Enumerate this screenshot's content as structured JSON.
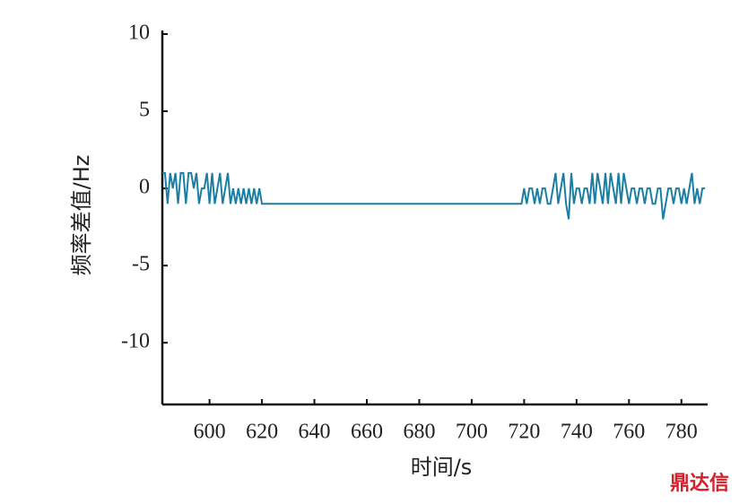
{
  "chart_data": {
    "type": "line",
    "xlabel": "时间/s",
    "ylabel": "频率差值/Hz",
    "watermark": "鼎达信",
    "xlim": [
      582,
      790
    ],
    "ylim": [
      -14,
      10
    ],
    "xticks": [
      600,
      620,
      640,
      660,
      680,
      700,
      720,
      740,
      760,
      780
    ],
    "yticks": [
      10,
      5,
      0,
      -5,
      -10
    ],
    "x": [
      582,
      583,
      584,
      585,
      586,
      587,
      588,
      589,
      590,
      591,
      592,
      593,
      594,
      595,
      596,
      597,
      598,
      599,
      600,
      601,
      602,
      603,
      604,
      605,
      606,
      607,
      608,
      609,
      610,
      611,
      612,
      613,
      614,
      615,
      616,
      617,
      618,
      619,
      620,
      719,
      720,
      721,
      722,
      723,
      724,
      725,
      726,
      727,
      728,
      729,
      730,
      731,
      732,
      733,
      734,
      735,
      736,
      737,
      738,
      739,
      740,
      741,
      742,
      743,
      744,
      745,
      746,
      747,
      748,
      749,
      750,
      751,
      752,
      753,
      754,
      755,
      756,
      757,
      758,
      759,
      760,
      761,
      762,
      763,
      764,
      765,
      766,
      767,
      768,
      769,
      770,
      771,
      772,
      773,
      774,
      775,
      776,
      777,
      778,
      779,
      780,
      781,
      782,
      783,
      784,
      785,
      786,
      787,
      788,
      789
    ],
    "series": [
      {
        "name": "频率差值",
        "color": "#1b7fa3",
        "values": [
          1,
          1,
          -1,
          1,
          0,
          1,
          -1,
          1,
          1,
          -1,
          1,
          1,
          0,
          1,
          -1,
          0,
          0,
          1,
          -1,
          1,
          -1,
          0,
          1,
          -1,
          0,
          1,
          -1,
          0,
          -1,
          0,
          -1,
          0,
          -1,
          0,
          -1,
          0,
          -1,
          0,
          -1,
          -1,
          0,
          -1,
          0,
          0,
          -1,
          0,
          -1,
          0,
          0,
          -1,
          -1,
          0,
          1,
          -1,
          0,
          1,
          -1,
          -2,
          1,
          -1,
          0,
          0,
          -1,
          0,
          0,
          -1,
          1,
          -1,
          1,
          0,
          -1,
          1,
          -1,
          1,
          0,
          -1,
          1,
          -1,
          1,
          0,
          -1,
          0,
          0,
          -1,
          0,
          0,
          -1,
          0,
          0,
          -1,
          -1,
          0,
          0,
          -2,
          -1,
          0,
          0,
          -1,
          0,
          0,
          -1,
          0,
          -1,
          0,
          1,
          -1,
          0,
          -1,
          0,
          0
        ]
      }
    ]
  }
}
